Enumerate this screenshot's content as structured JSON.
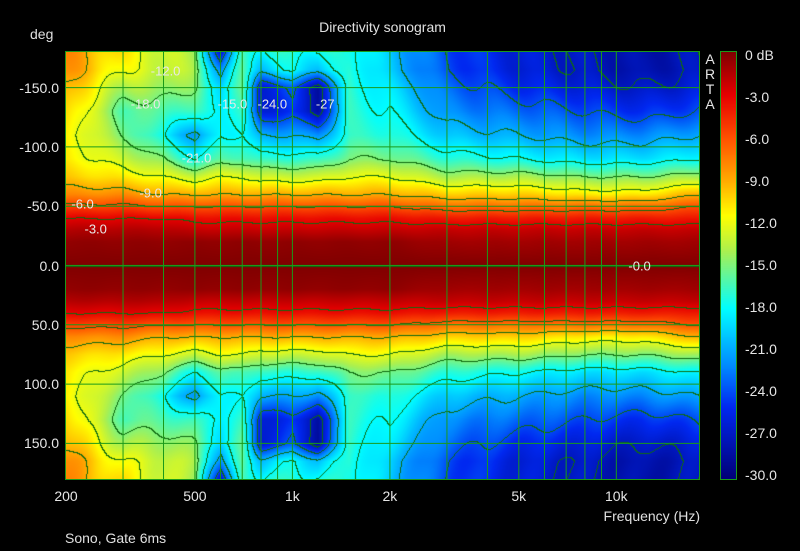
{
  "chart_data": {
    "type": "heatmap",
    "title": "Directivity sonogram",
    "xlabel": "Frequency (Hz)",
    "ylabel": "deg",
    "xscale": "log",
    "xlim": [
      200,
      18000
    ],
    "ylim": [
      -180,
      180
    ],
    "x_tick_labels": [
      {
        "value": 200,
        "label": "200"
      },
      {
        "value": 500,
        "label": "500"
      },
      {
        "value": 1000,
        "label": "1k"
      },
      {
        "value": 2000,
        "label": "2k"
      },
      {
        "value": 5000,
        "label": "5k"
      },
      {
        "value": 10000,
        "label": "10k"
      }
    ],
    "x_grid": [
      300,
      400,
      500,
      600,
      700,
      800,
      900,
      1000,
      2000,
      3000,
      4000,
      5000,
      6000,
      7000,
      8000,
      9000,
      10000
    ],
    "y_ticks": [
      {
        "value": -150,
        "label": "-150.0"
      },
      {
        "value": -100,
        "label": "-100.0"
      },
      {
        "value": -50,
        "label": "-50.0"
      },
      {
        "value": 0,
        "label": "0.0"
      },
      {
        "value": 50,
        "label": "50.0"
      },
      {
        "value": 100,
        "label": "100.0"
      },
      {
        "value": 150,
        "label": "150.0"
      }
    ],
    "colorbar": {
      "range": [
        -30,
        0
      ],
      "labels": [
        "0 dB",
        "-3.0",
        "-6.0",
        "-9.0",
        "-12.0",
        "-15.0",
        "-18.0",
        "-21.0",
        "-24.0",
        "-27.0",
        "-30.0"
      ]
    },
    "contour_step_db": 3,
    "angles": [
      0,
      20,
      30,
      40,
      50,
      60,
      75,
      90,
      110,
      130,
      150,
      165,
      180
    ],
    "frequencies": [
      200,
      300,
      400,
      500,
      600,
      700,
      800,
      1000,
      1200,
      1500,
      2000,
      3000,
      5000,
      8000,
      12000,
      18000
    ],
    "levels_db": [
      [
        0,
        -0.5,
        -1.5,
        -3,
        -5.5,
        -8,
        -10,
        -11,
        -11,
        -10,
        -9,
        -8,
        -8
      ],
      [
        0,
        -0.5,
        -1.5,
        -3,
        -5.5,
        -8,
        -11,
        -13,
        -15,
        -16,
        -14,
        -12,
        -11
      ],
      [
        0,
        -0.5,
        -1.5,
        -3,
        -6,
        -9,
        -12,
        -15,
        -18,
        -16,
        -14,
        -13,
        -13
      ],
      [
        0,
        -0.5,
        -2,
        -3.5,
        -6,
        -9,
        -13,
        -18,
        -22,
        -17,
        -15,
        -14,
        -14
      ],
      [
        0,
        -0.5,
        -2,
        -3.5,
        -6,
        -9,
        -12,
        -16,
        -18,
        -18,
        -19,
        -22,
        -27
      ],
      [
        0,
        -0.5,
        -2,
        -3.5,
        -6,
        -9,
        -12,
        -16,
        -18,
        -17,
        -16,
        -16,
        -16
      ],
      [
        0,
        -0.5,
        -2,
        -3.5,
        -6,
        -9,
        -13,
        -17,
        -21,
        -26,
        -26,
        -20,
        -18
      ],
      [
        0,
        -0.5,
        -2,
        -3.5,
        -6,
        -9,
        -13,
        -17,
        -21,
        -25,
        -24,
        -18,
        -17
      ],
      [
        0,
        -0.5,
        -2,
        -3.5,
        -6,
        -9,
        -13,
        -17,
        -22,
        -28,
        -28,
        -20,
        -18
      ],
      [
        0,
        -0.5,
        -2,
        -3.5,
        -6,
        -9,
        -12,
        -15,
        -17,
        -17,
        -17,
        -17,
        -17
      ],
      [
        0,
        -0.5,
        -2,
        -3.5,
        -6,
        -9,
        -12,
        -15,
        -17,
        -18,
        -19,
        -20,
        -20
      ],
      [
        0,
        -1,
        -2,
        -4,
        -7,
        -10,
        -14,
        -17,
        -20,
        -22,
        -23,
        -24,
        -24
      ],
      [
        0,
        -1,
        -2,
        -4,
        -7,
        -10,
        -14,
        -18,
        -21,
        -23,
        -25,
        -26,
        -26
      ],
      [
        0,
        -1,
        -2,
        -4,
        -7,
        -11,
        -15,
        -19,
        -22,
        -24,
        -26,
        -27,
        -27
      ],
      [
        0,
        -1,
        -2,
        -4,
        -7,
        -11,
        -15,
        -19,
        -22,
        -25,
        -27,
        -28,
        -28
      ],
      [
        0,
        -1,
        -2,
        -4,
        -6,
        -9,
        -14,
        -18,
        -21,
        -24,
        -26,
        -27,
        -27
      ]
    ],
    "contour_labels": [
      {
        "text": "-12.0",
        "freq": 406,
        "angle": -164
      },
      {
        "text": "-18.0",
        "freq": 352,
        "angle": -136
      },
      {
        "text": "-15.0",
        "freq": 653,
        "angle": -136
      },
      {
        "text": "-24.0",
        "freq": 867,
        "angle": -136
      },
      {
        "text": "-27",
        "freq": 1263,
        "angle": -136
      },
      {
        "text": "-21.0",
        "freq": 506,
        "angle": -91
      },
      {
        "text": "-9.0",
        "freq": 365,
        "angle": -61
      },
      {
        "text": "-6.0",
        "freq": 225,
        "angle": -52
      },
      {
        "text": "-3.0",
        "freq": 247,
        "angle": -31
      },
      {
        "text": "-0.0",
        "freq": 11800,
        "angle": 0
      }
    ]
  },
  "side_label": [
    "A",
    "R",
    "T",
    "A"
  ],
  "footer": "Sono, Gate 6ms",
  "colors": {
    "grid": "#1a9a1a",
    "contour": "#0f6a10",
    "background": "#000000"
  }
}
